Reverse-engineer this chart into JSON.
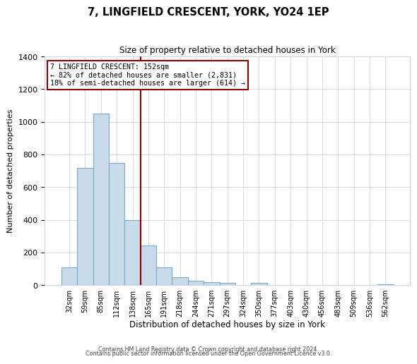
{
  "title": "7, LINGFIELD CRESCENT, YORK, YO24 1EP",
  "subtitle": "Size of property relative to detached houses in York",
  "xlabel": "Distribution of detached houses by size in York",
  "ylabel": "Number of detached properties",
  "bar_labels": [
    "32sqm",
    "59sqm",
    "85sqm",
    "112sqm",
    "138sqm",
    "165sqm",
    "191sqm",
    "218sqm",
    "244sqm",
    "271sqm",
    "297sqm",
    "324sqm",
    "350sqm",
    "377sqm",
    "403sqm",
    "430sqm",
    "456sqm",
    "483sqm",
    "509sqm",
    "536sqm",
    "562sqm"
  ],
  "bar_values": [
    107,
    720,
    1050,
    748,
    400,
    243,
    110,
    48,
    25,
    20,
    15,
    0,
    15,
    0,
    0,
    0,
    0,
    0,
    0,
    0,
    5
  ],
  "bar_color": "#c9daea",
  "bar_edge_color": "#7aaac8",
  "property_line_x": 4.5,
  "property_line_color": "#8b0000",
  "annotation_title": "7 LINGFIELD CRESCENT: 152sqm",
  "annotation_line1": "← 82% of detached houses are smaller (2,831)",
  "annotation_line2": "18% of semi-detached houses are larger (614) →",
  "annotation_box_color": "#ffffff",
  "annotation_box_edge": "#8b0000",
  "ylim": [
    0,
    1400
  ],
  "yticks": [
    0,
    200,
    400,
    600,
    800,
    1000,
    1200,
    1400
  ],
  "footer1": "Contains HM Land Registry data © Crown copyright and database right 2024.",
  "footer2": "Contains public sector information licensed under the Open Government Licence v3.0.",
  "background_color": "#ffffff",
  "grid_color": "#ccd8e4"
}
